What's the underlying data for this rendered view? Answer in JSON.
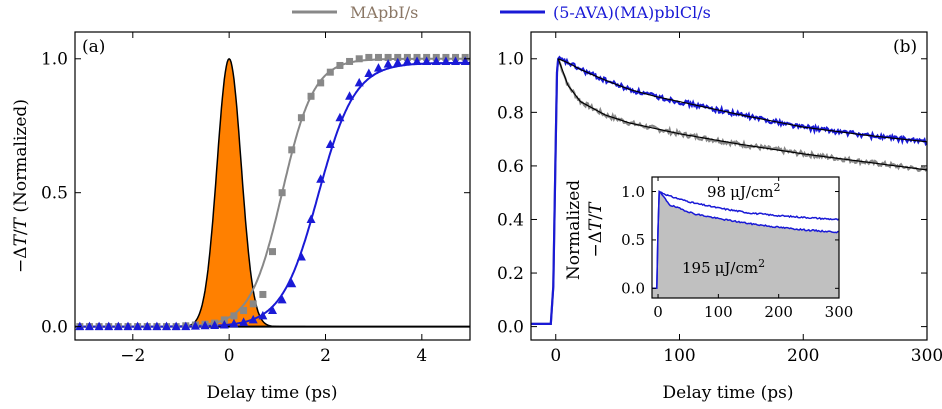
{
  "legend": {
    "items": [
      {
        "label": "MApbI/s",
        "color": "#888888",
        "text_color": "#8b7765"
      },
      {
        "label": "(5-AVA)(MA)pblCl/s",
        "color": "#1a1ad6",
        "text_color": "#1a1ad6"
      }
    ]
  },
  "colors": {
    "gray": "#888888",
    "blue": "#1a1ad6",
    "orange": "#ff8000",
    "black": "#000000",
    "inset_fill": "#c0c0c0"
  },
  "chart_data": [
    {
      "panel": "(a)",
      "type": "scatter",
      "xlabel": "Delay time (ps)",
      "ylabel_parts": {
        "minus_delta": "−Δ",
        "T": "T",
        "slash": "/",
        "T2": "T",
        "rest": " (Normalized)"
      },
      "xlim": [
        -3.2,
        5
      ],
      "ylim": [
        -0.05,
        1.1
      ],
      "xticks": [
        -2,
        0,
        2,
        4
      ],
      "xtick_labels": [
        "−2",
        "0",
        "2",
        "4"
      ],
      "yticks": [
        0.0,
        0.5,
        1.0
      ],
      "ytick_labels": [
        "0.0",
        "0.5",
        "1.0"
      ],
      "pulse": {
        "name": "pump pulse (filled)",
        "center": 0.0,
        "sigma": 0.25,
        "peak": 1.0
      },
      "series": [
        {
          "name": "MApbI/s",
          "marker": "square",
          "points": [
            [
              -3.1,
              0
            ],
            [
              -2.9,
              0
            ],
            [
              -2.7,
              0
            ],
            [
              -2.5,
              0
            ],
            [
              -2.3,
              0
            ],
            [
              -2.1,
              0
            ],
            [
              -1.9,
              0
            ],
            [
              -1.7,
              0
            ],
            [
              -1.5,
              0
            ],
            [
              -1.3,
              0
            ],
            [
              -1.1,
              0
            ],
            [
              -0.9,
              0.003
            ],
            [
              -0.7,
              0.006
            ],
            [
              -0.5,
              0.009
            ],
            [
              -0.3,
              0.013
            ],
            [
              -0.1,
              0.025
            ],
            [
              0.1,
              0.04
            ],
            [
              0.3,
              0.06
            ],
            [
              0.5,
              0.085
            ],
            [
              0.7,
              0.12
            ],
            [
              0.9,
              0.28
            ],
            [
              1.1,
              0.5
            ],
            [
              1.3,
              0.66
            ],
            [
              1.5,
              0.78
            ],
            [
              1.7,
              0.86
            ],
            [
              1.9,
              0.91
            ],
            [
              2.1,
              0.95
            ],
            [
              2.3,
              0.975
            ],
            [
              2.5,
              0.99
            ],
            [
              2.7,
              1.0
            ],
            [
              2.9,
              1.005
            ],
            [
              3.1,
              1.005
            ],
            [
              3.3,
              1.005
            ],
            [
              3.5,
              1.005
            ],
            [
              3.7,
              1.005
            ],
            [
              3.9,
              1.005
            ],
            [
              4.1,
              1.005
            ],
            [
              4.3,
              1.005
            ],
            [
              4.5,
              1.005
            ],
            [
              4.7,
              1.005
            ],
            [
              4.9,
              1.005
            ]
          ]
        },
        {
          "name": "(5-AVA)(MA)pblCl/s",
          "marker": "triangle",
          "points": [
            [
              -3.1,
              0
            ],
            [
              -2.9,
              0
            ],
            [
              -2.7,
              0
            ],
            [
              -2.5,
              0
            ],
            [
              -2.3,
              0
            ],
            [
              -2.1,
              0
            ],
            [
              -1.9,
              0
            ],
            [
              -1.7,
              0
            ],
            [
              -1.5,
              0
            ],
            [
              -1.3,
              0
            ],
            [
              -1.1,
              0
            ],
            [
              -0.9,
              0
            ],
            [
              -0.7,
              0.002
            ],
            [
              -0.5,
              0.003
            ],
            [
              -0.3,
              0.004
            ],
            [
              -0.1,
              0.006
            ],
            [
              0.1,
              0.01
            ],
            [
              0.3,
              0.016
            ],
            [
              0.5,
              0.025
            ],
            [
              0.7,
              0.04
            ],
            [
              0.9,
              0.06
            ],
            [
              1.1,
              0.1
            ],
            [
              1.3,
              0.16
            ],
            [
              1.5,
              0.26
            ],
            [
              1.7,
              0.4
            ],
            [
              1.9,
              0.55
            ],
            [
              2.1,
              0.68
            ],
            [
              2.3,
              0.78
            ],
            [
              2.5,
              0.86
            ],
            [
              2.7,
              0.91
            ],
            [
              2.9,
              0.945
            ],
            [
              3.1,
              0.965
            ],
            [
              3.3,
              0.98
            ],
            [
              3.5,
              0.985
            ],
            [
              3.7,
              0.99
            ],
            [
              3.9,
              0.99
            ],
            [
              4.1,
              0.99
            ],
            [
              4.3,
              0.99
            ],
            [
              4.5,
              0.99
            ],
            [
              4.7,
              0.99
            ],
            [
              4.9,
              0.99
            ]
          ]
        }
      ],
      "fits": [
        {
          "name": "MApbI/s fit",
          "type": "sigmoid",
          "x0": 1.1,
          "width": 0.33,
          "max": 1.0
        },
        {
          "name": "(5-AVA)(MA)pblCl/s fit",
          "type": "sigmoid",
          "x0": 1.85,
          "width": 0.38,
          "max": 0.985
        }
      ]
    },
    {
      "panel": "(b)",
      "type": "line",
      "xlabel": "Delay time (ps)",
      "xlim": [
        -20,
        300
      ],
      "ylim": [
        -0.05,
        1.1
      ],
      "xticks": [
        0,
        100,
        200,
        300
      ],
      "xtick_labels": [
        "0",
        "100",
        "200",
        "300"
      ],
      "yticks": [
        0.0,
        0.2,
        0.4,
        0.6,
        0.8,
        1.0
      ],
      "ytick_labels": [
        "0.0",
        "0.2",
        "0.4",
        "0.6",
        "0.8",
        "1.0"
      ],
      "series": [
        {
          "name": "MApbI/s",
          "peak_time": 2,
          "decay": [
            [
              2,
              1.0
            ],
            [
              10,
              0.9
            ],
            [
              20,
              0.84
            ],
            [
              40,
              0.79
            ],
            [
              60,
              0.76
            ],
            [
              80,
              0.74
            ],
            [
              100,
              0.72
            ],
            [
              150,
              0.68
            ],
            [
              200,
              0.645
            ],
            [
              250,
              0.615
            ],
            [
              300,
              0.585
            ]
          ]
        },
        {
          "name": "(5-AVA)(MA)pblCl/s",
          "peak_time": 2,
          "decay": [
            [
              2,
              1.0
            ],
            [
              10,
              0.985
            ],
            [
              20,
              0.96
            ],
            [
              40,
              0.92
            ],
            [
              60,
              0.885
            ],
            [
              80,
              0.86
            ],
            [
              100,
              0.84
            ],
            [
              150,
              0.79
            ],
            [
              200,
              0.745
            ],
            [
              250,
              0.715
            ],
            [
              300,
              0.69
            ]
          ]
        }
      ],
      "inset": {
        "ylabel_line1": "Normalized",
        "ylabel_line2": {
          "minus_delta": "−Δ",
          "T": "T",
          "slash": "/",
          "T2": "T"
        },
        "xlim": [
          -10,
          300
        ],
        "ylim": [
          -0.1,
          1.15
        ],
        "xticks": [
          0,
          100,
          200,
          300
        ],
        "xtick_labels": [
          "0",
          "100",
          "200",
          "300"
        ],
        "yticks": [
          0.0,
          0.5,
          1.0
        ],
        "ytick_labels": [
          "0.0",
          "0.5",
          "1.0"
        ],
        "series": [
          {
            "name": "98 μJ/cm²",
            "decay": [
              [
                2,
                1.0
              ],
              [
                20,
                0.95
              ],
              [
                60,
                0.88
              ],
              [
                100,
                0.83
              ],
              [
                150,
                0.78
              ],
              [
                200,
                0.75
              ],
              [
                250,
                0.73
              ],
              [
                300,
                0.71
              ]
            ]
          },
          {
            "name": "195 μJ/cm²",
            "decay": [
              [
                2,
                1.0
              ],
              [
                20,
                0.86
              ],
              [
                60,
                0.77
              ],
              [
                100,
                0.72
              ],
              [
                150,
                0.67
              ],
              [
                200,
                0.63
              ],
              [
                250,
                0.6
              ],
              [
                300,
                0.58
              ]
            ]
          }
        ],
        "annotations": {
          "upper": {
            "num": "98",
            "unit": "μJ/cm",
            "sup": "2"
          },
          "lower": {
            "num": "195",
            "unit": "μJ/cm",
            "sup": "2"
          }
        }
      }
    }
  ]
}
